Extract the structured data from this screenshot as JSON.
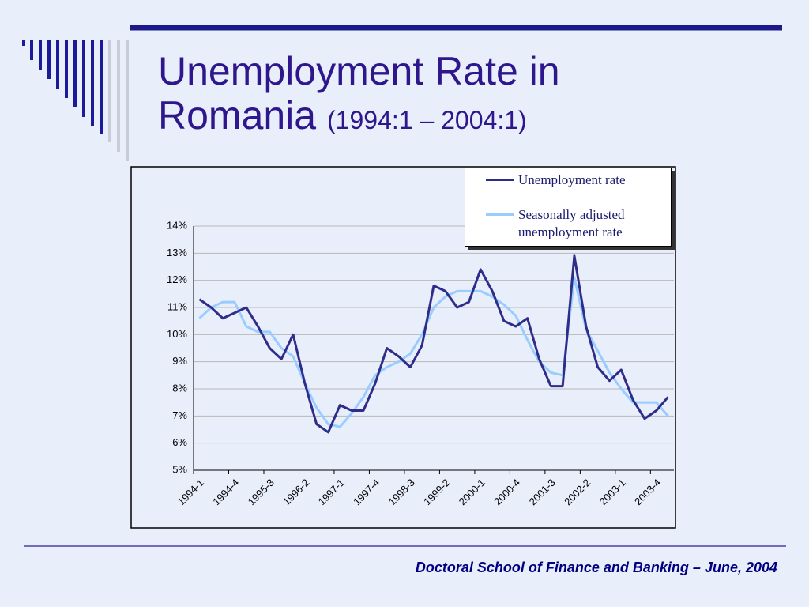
{
  "slide": {
    "title": "Unemployment Rate in Romania",
    "subtitle": "(1994:1 – 2004:1)",
    "footer": "Doctoral School of Finance and Banking – June, 2004"
  },
  "chart_data": {
    "type": "line",
    "categories": [
      "1994-1",
      null,
      null,
      "1994-4",
      null,
      null,
      "1995-3",
      null,
      null,
      "1996-2",
      null,
      null,
      "1997-1",
      null,
      null,
      "1997-4",
      null,
      null,
      "1998-3",
      null,
      null,
      "1999-2",
      null,
      null,
      "2000-1",
      null,
      null,
      "2000-4",
      null,
      null,
      "2001-3",
      null,
      null,
      "2002-2",
      null,
      null,
      "2003-1",
      null,
      null,
      "2003-4",
      null
    ],
    "series": [
      {
        "name": "Unemployment rate",
        "color": "#2e2e8a",
        "values": [
          11.3,
          11.0,
          10.6,
          10.8,
          11.0,
          10.3,
          9.5,
          9.1,
          10.0,
          8.2,
          6.7,
          6.4,
          7.4,
          7.2,
          7.2,
          8.2,
          9.5,
          9.2,
          8.8,
          9.6,
          11.8,
          11.6,
          11.0,
          11.2,
          12.4,
          11.6,
          10.5,
          10.3,
          10.6,
          9.1,
          8.1,
          8.1,
          12.9,
          10.3,
          8.8,
          8.3,
          8.7,
          7.6,
          6.9,
          7.2,
          7.7
        ]
      },
      {
        "name": "Seasonally adjusted unemployment rate",
        "color": "#99ccff",
        "values": [
          10.6,
          11.0,
          11.2,
          11.2,
          10.3,
          10.1,
          10.1,
          9.5,
          9.2,
          8.2,
          7.3,
          6.7,
          6.6,
          7.1,
          7.7,
          8.5,
          8.8,
          9.0,
          9.3,
          10.0,
          11.0,
          11.4,
          11.6,
          11.6,
          11.6,
          11.4,
          11.1,
          10.7,
          9.8,
          9.0,
          8.6,
          8.5,
          12.1,
          10.2,
          9.4,
          8.6,
          8.0,
          7.5,
          7.5,
          7.5,
          7.0
        ]
      }
    ],
    "ylim": [
      5,
      14
    ],
    "yticks": [
      {
        "value": 5,
        "label": "5%"
      },
      {
        "value": 6,
        "label": "6%"
      },
      {
        "value": 7,
        "label": "7%"
      },
      {
        "value": 8,
        "label": "8%"
      },
      {
        "value": 9,
        "label": "9%"
      },
      {
        "value": 10,
        "label": "10%"
      },
      {
        "value": 11,
        "label": "11%"
      },
      {
        "value": 12,
        "label": "12%"
      },
      {
        "value": 13,
        "label": "13%"
      },
      {
        "value": 14,
        "label": "14%"
      }
    ],
    "grid": true,
    "legend": "top-right"
  }
}
